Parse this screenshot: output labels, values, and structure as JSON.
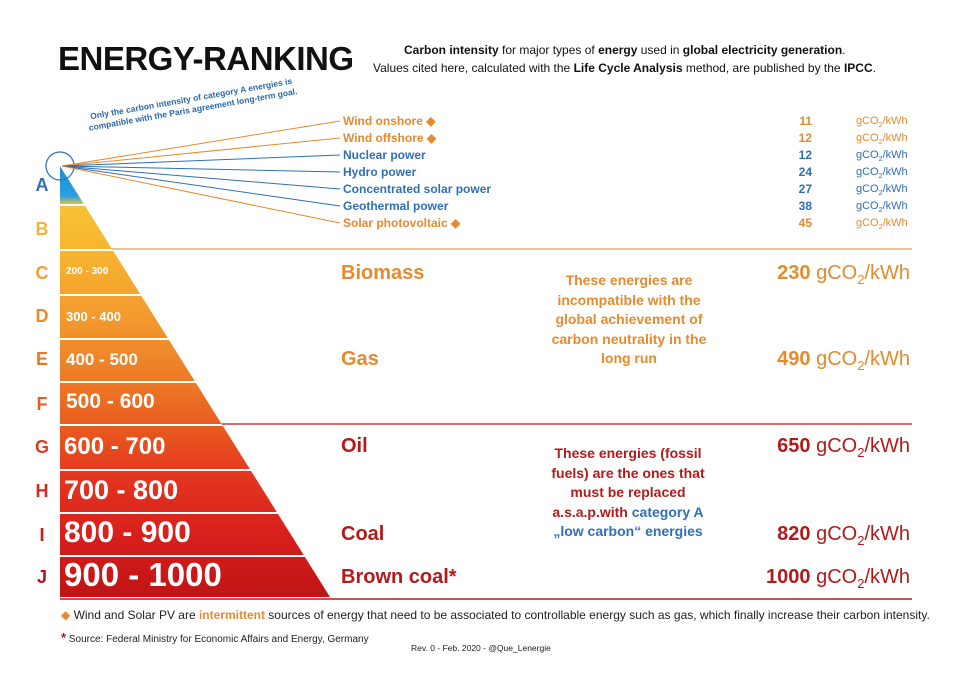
{
  "header": {
    "title": "ENERGY-RANKING",
    "subtitle_line1_bold1": "Carbon intensity",
    "subtitle_line1_mid": " for major types of ",
    "subtitle_line1_bold2": "energy",
    "subtitle_line1_mid2": " used in ",
    "subtitle_line1_bold3": "global electricity generation",
    "subtitle_line1_end": ".",
    "subtitle_line2_start": "Values cited here, calculated with the ",
    "subtitle_line2_bold1": "Life Cycle Analysis",
    "subtitle_line2_mid": " method, are published by the ",
    "subtitle_line2_bold2": "IPCC",
    "subtitle_line2_end": "."
  },
  "goal_note": {
    "line1": "Only the carbon intensity of category A energies is",
    "line2": "compatible with the Paris agreement long-term goal."
  },
  "categories": [
    {
      "letter": "A",
      "range": "",
      "color": "#2f6fb6"
    },
    {
      "letter": "B",
      "range": "",
      "color": "#f2b43a"
    },
    {
      "letter": "C",
      "range": "200 - 300",
      "color": "#f0a030"
    },
    {
      "letter": "D",
      "range": "300 - 400",
      "color": "#ed8a2a"
    },
    {
      "letter": "E",
      "range": "400 - 500",
      "color": "#ea7526"
    },
    {
      "letter": "F",
      "range": "500 - 600",
      "color": "#e8601f"
    },
    {
      "letter": "G",
      "range": "600 - 700",
      "color": "#e03a20"
    },
    {
      "letter": "H",
      "range": "700 - 800",
      "color": "#d8271c"
    },
    {
      "letter": "I",
      "range": "800 - 900",
      "color": "#cc1a18"
    },
    {
      "letter": "J",
      "range": "900 - 1000",
      "color": "#b81414"
    }
  ],
  "category_a": [
    {
      "name": "Wind onshore",
      "diamond": "◆",
      "value": "11",
      "unit_pre": "gCO",
      "unit_sub": "2",
      "unit_post": "/kWh",
      "color": "orange"
    },
    {
      "name": "Wind offshore",
      "diamond": "◆",
      "value": "12",
      "unit_pre": "gCO",
      "unit_sub": "2",
      "unit_post": "/kWh",
      "color": "orange"
    },
    {
      "name": "Nuclear power",
      "diamond": "",
      "value": "12",
      "unit_pre": "gCO",
      "unit_sub": "2",
      "unit_post": "/kWh",
      "color": "blue"
    },
    {
      "name": "Hydro power",
      "diamond": "",
      "value": "24",
      "unit_pre": "gCO",
      "unit_sub": "2",
      "unit_post": "/kWh",
      "color": "blue"
    },
    {
      "name": "Concentrated solar power",
      "diamond": "",
      "value": "27",
      "unit_pre": "gCO",
      "unit_sub": "2",
      "unit_post": "/kWh",
      "color": "blue"
    },
    {
      "name": "Geothermal power",
      "diamond": "",
      "value": "38",
      "unit_pre": "gCO",
      "unit_sub": "2",
      "unit_post": "/kWh",
      "color": "blue"
    },
    {
      "name": "Solar photovoltaic",
      "diamond": "◆",
      "value": "45",
      "unit_pre": "gCO",
      "unit_sub": "2",
      "unit_post": "/kWh",
      "color": "orange"
    }
  ],
  "big_sources": [
    {
      "name": "Biomass",
      "value": "230",
      "unit_pre": " gCO",
      "unit_sub": "2",
      "unit_post": "/kWh",
      "color": "#e58a2e"
    },
    {
      "name": "Gas",
      "value": "490",
      "unit_pre": " gCO",
      "unit_sub": "2",
      "unit_post": "/kWh",
      "color": "#e58a2e"
    },
    {
      "name": "Oil",
      "value": "650",
      "unit_pre": " gCO",
      "unit_sub": "2",
      "unit_post": "/kWh",
      "color": "#b31b1b"
    },
    {
      "name": "Coal",
      "value": "820",
      "unit_pre": " gCO",
      "unit_sub": "2",
      "unit_post": "/kWh",
      "color": "#b31b1b"
    },
    {
      "name": "Brown coal*",
      "value": "1000",
      "unit_pre": " gCO",
      "unit_sub": "2",
      "unit_post": "/kWh",
      "color": "#b31b1b"
    }
  ],
  "notes": {
    "orange_block": "These energies are incompatible with the global achievement of carbon neutrality in the long run",
    "red_block_part1": "These energies (fossil fuels) are the ones that must be replaced a.s.a.p.with",
    "red_block_part2": "category A „low carbon“ energies"
  },
  "footer": {
    "diamond": "◆",
    "footnote_start": " Wind and Solar PV are ",
    "footnote_bold": "intermittent",
    "footnote_end": " sources of energy that need to be associated to controllable energy such as gas, which finally increase their carbon intensity.",
    "asterisk": "*",
    "source": "Source: Federal Ministry for Economic Affairs and Energy, Germany",
    "revision": "Rev. 0 - Feb. 2020 - @Que_Lenergie"
  },
  "colors": {
    "orange_text": "#e58a2e",
    "blue_text": "#2f6fb6",
    "dark_red_text": "#b31b1b",
    "orange_line": "#e0a060",
    "red_line": "#b31b1b"
  }
}
